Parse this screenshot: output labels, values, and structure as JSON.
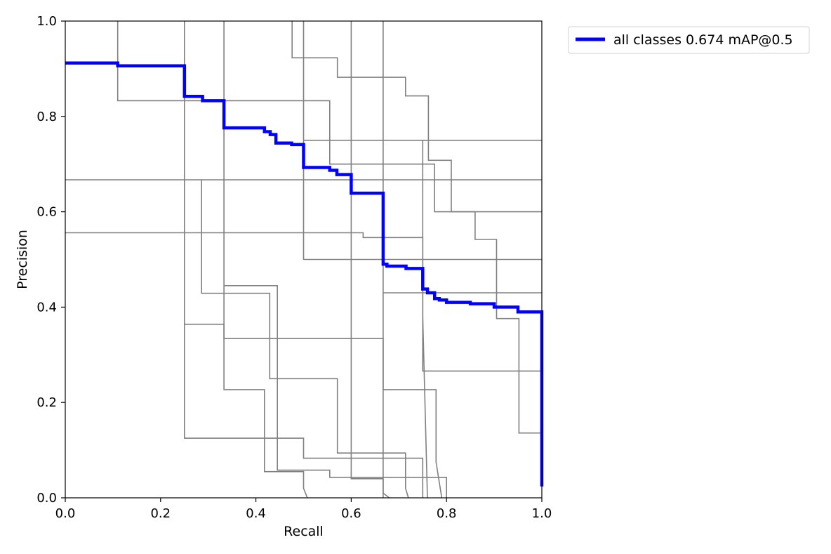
{
  "chart_data": {
    "type": "line",
    "title": "",
    "xlabel": "Recall",
    "ylabel": "Precision",
    "xlim": [
      0,
      1
    ],
    "ylim": [
      0,
      1
    ],
    "xticks": [
      "0.0",
      "0.2",
      "0.4",
      "0.6",
      "0.8",
      "1.0"
    ],
    "yticks": [
      "0.0",
      "0.2",
      "0.4",
      "0.6",
      "0.8",
      "1.0"
    ],
    "grid": false,
    "legend_position": "outside-top-right",
    "series": [
      {
        "name": "all classes 0.674 mAP@0.5",
        "color": "#0000ff",
        "points": [
          [
            0.0,
            0.912
          ],
          [
            0.11,
            0.912
          ],
          [
            0.11,
            0.906
          ],
          [
            0.25,
            0.906
          ],
          [
            0.25,
            0.842
          ],
          [
            0.288,
            0.842
          ],
          [
            0.288,
            0.833
          ],
          [
            0.333,
            0.833
          ],
          [
            0.333,
            0.776
          ],
          [
            0.418,
            0.776
          ],
          [
            0.418,
            0.768
          ],
          [
            0.43,
            0.768
          ],
          [
            0.43,
            0.762
          ],
          [
            0.442,
            0.762
          ],
          [
            0.442,
            0.744
          ],
          [
            0.475,
            0.744
          ],
          [
            0.475,
            0.741
          ],
          [
            0.5,
            0.741
          ],
          [
            0.5,
            0.693
          ],
          [
            0.555,
            0.693
          ],
          [
            0.555,
            0.687
          ],
          [
            0.57,
            0.687
          ],
          [
            0.57,
            0.678
          ],
          [
            0.6,
            0.678
          ],
          [
            0.6,
            0.639
          ],
          [
            0.667,
            0.639
          ],
          [
            0.667,
            0.49
          ],
          [
            0.675,
            0.49
          ],
          [
            0.675,
            0.486
          ],
          [
            0.715,
            0.486
          ],
          [
            0.715,
            0.481
          ],
          [
            0.75,
            0.481
          ],
          [
            0.75,
            0.438
          ],
          [
            0.76,
            0.438
          ],
          [
            0.76,
            0.43
          ],
          [
            0.775,
            0.43
          ],
          [
            0.775,
            0.418
          ],
          [
            0.785,
            0.418
          ],
          [
            0.785,
            0.415
          ],
          [
            0.8,
            0.415
          ],
          [
            0.8,
            0.41
          ],
          [
            0.85,
            0.41
          ],
          [
            0.85,
            0.407
          ],
          [
            0.9,
            0.407
          ],
          [
            0.9,
            0.4
          ],
          [
            0.95,
            0.4
          ],
          [
            0.95,
            0.39
          ],
          [
            1.0,
            0.39
          ],
          [
            1.0,
            0.024
          ]
        ]
      },
      {
        "color": "#808080",
        "points": [
          [
            0.11,
            1.0
          ],
          [
            0.11,
            0.833
          ],
          [
            0.555,
            0.833
          ],
          [
            0.555,
            0.7
          ],
          [
            0.75,
            0.7
          ],
          [
            0.75,
            0.38
          ],
          [
            0.76,
            0.0
          ]
        ]
      },
      {
        "color": "#808080",
        "points": [
          [
            0.25,
            1.0
          ],
          [
            0.25,
            0.125
          ],
          [
            0.5,
            0.125
          ],
          [
            0.5,
            0.083
          ],
          [
            0.75,
            0.083
          ],
          [
            0.75,
            0.0
          ]
        ]
      },
      {
        "color": "#808080",
        "points": [
          [
            0.333,
            1.0
          ],
          [
            0.333,
            0.227
          ],
          [
            0.418,
            0.227
          ],
          [
            0.418,
            0.055
          ],
          [
            0.5,
            0.055
          ],
          [
            0.5,
            0.02
          ],
          [
            0.508,
            0.0
          ]
        ]
      },
      {
        "color": "#808080",
        "points": [
          [
            0.476,
            1.0
          ],
          [
            0.476,
            0.923
          ],
          [
            0.571,
            0.923
          ],
          [
            0.571,
            0.882
          ],
          [
            0.714,
            0.882
          ],
          [
            0.714,
            0.843
          ],
          [
            0.762,
            0.843
          ],
          [
            0.762,
            0.708
          ],
          [
            0.81,
            0.708
          ],
          [
            0.81,
            0.6
          ],
          [
            1.0,
            0.6
          ]
        ]
      },
      {
        "color": "#808080",
        "points": [
          [
            0.5,
            1.0
          ],
          [
            0.5,
            0.5
          ],
          [
            1.0,
            0.5
          ]
        ]
      },
      {
        "color": "#808080",
        "points": [
          [
            0.6,
            1.0
          ],
          [
            0.6,
            0.04
          ],
          [
            0.667,
            0.04
          ],
          [
            0.667,
            0.0
          ]
        ]
      },
      {
        "color": "#808080",
        "points": [
          [
            0.667,
            1.0
          ],
          [
            0.667,
            0.01
          ],
          [
            0.68,
            0.0
          ]
        ]
      },
      {
        "color": "#808080",
        "points": [
          [
            0.0,
            0.667
          ],
          [
            1.0,
            0.667
          ]
        ]
      },
      {
        "color": "#808080",
        "points": [
          [
            0.0,
            0.556
          ],
          [
            0.625,
            0.556
          ],
          [
            0.625,
            0.546
          ],
          [
            0.75,
            0.546
          ],
          [
            0.75,
            0.266
          ],
          [
            1.0,
            0.266
          ]
        ]
      },
      {
        "color": "#808080",
        "points": [
          [
            0.5,
            0.75
          ],
          [
            1.0,
            0.75
          ]
        ]
      },
      {
        "color": "#808080",
        "points": [
          [
            0.75,
            0.75
          ],
          [
            0.75,
            0.7
          ],
          [
            0.775,
            0.7
          ],
          [
            0.775,
            0.6
          ],
          [
            0.86,
            0.6
          ],
          [
            0.86,
            0.542
          ],
          [
            0.905,
            0.542
          ],
          [
            0.905,
            0.376
          ],
          [
            0.952,
            0.376
          ],
          [
            0.952,
            0.136
          ],
          [
            1.0,
            0.136
          ]
        ]
      },
      {
        "color": "#808080",
        "points": [
          [
            0.667,
            0.43
          ],
          [
            1.0,
            0.43
          ]
        ]
      },
      {
        "color": "#808080",
        "points": [
          [
            0.286,
            0.667
          ],
          [
            0.286,
            0.429
          ],
          [
            0.429,
            0.429
          ],
          [
            0.429,
            0.25
          ],
          [
            0.571,
            0.25
          ],
          [
            0.571,
            0.094
          ],
          [
            0.714,
            0.094
          ],
          [
            0.714,
            0.02
          ],
          [
            0.72,
            0.0
          ]
        ]
      },
      {
        "color": "#808080",
        "points": [
          [
            0.333,
            0.445
          ],
          [
            0.445,
            0.445
          ],
          [
            0.445,
            0.058
          ],
          [
            0.555,
            0.058
          ],
          [
            0.555,
            0.043
          ],
          [
            0.8,
            0.043
          ],
          [
            0.8,
            0.0
          ]
        ]
      },
      {
        "color": "#808080",
        "points": [
          [
            0.25,
            0.364
          ],
          [
            0.333,
            0.364
          ],
          [
            0.333,
            0.334
          ],
          [
            0.667,
            0.334
          ],
          [
            0.667,
            0.227
          ],
          [
            0.778,
            0.227
          ],
          [
            0.778,
            0.075
          ],
          [
            0.79,
            0.0
          ]
        ]
      }
    ]
  }
}
